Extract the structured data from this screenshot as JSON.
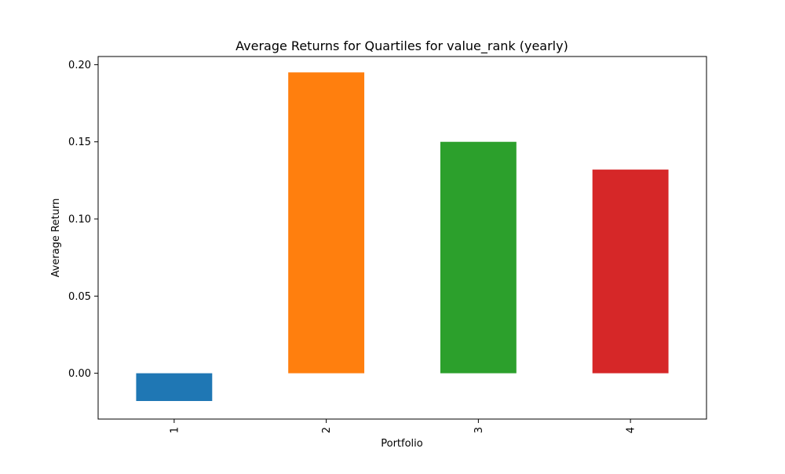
{
  "chart_data": {
    "type": "bar",
    "title": "Average Returns for Quartiles for value_rank (yearly)",
    "xlabel": "Portfolio",
    "ylabel": "Average Return",
    "categories": [
      "1",
      "2",
      "3",
      "4"
    ],
    "values": [
      -0.018,
      0.195,
      0.15,
      0.132
    ],
    "colors": [
      "#1f77b4",
      "#ff7f0e",
      "#2ca02c",
      "#d62728"
    ],
    "ylim": [
      -0.0297,
      0.2053
    ],
    "yticks": [
      0.0,
      0.05,
      0.1,
      0.15,
      0.2
    ],
    "ytick_labels": [
      "0.00",
      "0.05",
      "0.10",
      "0.15",
      "0.20"
    ],
    "xtick_rotation": "vertical",
    "grid": false,
    "legend": "none"
  }
}
